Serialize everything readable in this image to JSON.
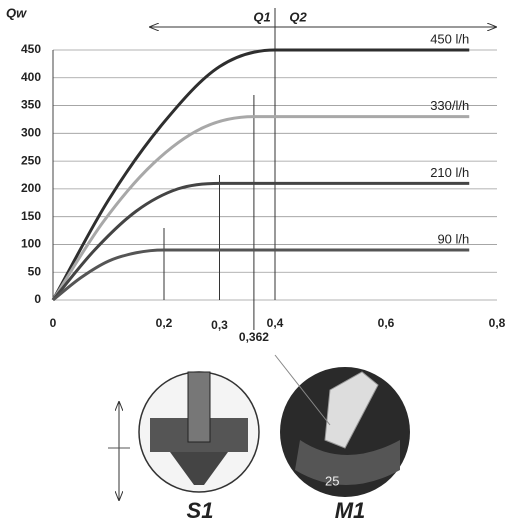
{
  "chart_data": {
    "type": "line",
    "y_label": "Qw",
    "xlim": [
      0,
      0.8
    ],
    "ylim": [
      0,
      450
    ],
    "xticks": [
      0,
      {
        "value": 0.2,
        "label": "0,2"
      },
      {
        "value": 0.3,
        "label": "0,3"
      },
      {
        "value": 0.362,
        "label": "0,362"
      },
      {
        "value": 0.4,
        "label": "0,4"
      },
      {
        "value": 0.6,
        "label": "0,6"
      },
      {
        "value": 0.8,
        "label": "0,8"
      }
    ],
    "yticks": [
      0,
      50,
      100,
      150,
      200,
      250,
      300,
      350,
      400,
      450
    ],
    "grid": true,
    "series": [
      {
        "name": "450 l/h",
        "color": "#2e2e2e",
        "x": [
          0,
          0.1,
          0.2,
          0.3,
          0.4,
          0.75
        ],
        "values": [
          0,
          180,
          320,
          420,
          450,
          450
        ]
      },
      {
        "name": "330/l/h",
        "color": "#a8a8a8",
        "x": [
          0,
          0.09,
          0.18,
          0.27,
          0.362,
          0.75
        ],
        "values": [
          0,
          140,
          245,
          310,
          330,
          330
        ]
      },
      {
        "name": "210 l/h",
        "color": "#444444",
        "x": [
          0,
          0.075,
          0.15,
          0.225,
          0.3,
          0.75
        ],
        "values": [
          0,
          90,
          160,
          200,
          210,
          210
        ]
      },
      {
        "name": "90 l/h",
        "color": "#555555",
        "x": [
          0,
          0.05,
          0.1,
          0.15,
          0.2,
          0.75
        ],
        "values": [
          0,
          40,
          70,
          85,
          90,
          90
        ]
      }
    ],
    "annotations": [
      "Q1",
      "Q2",
      "S1",
      "M1"
    ]
  }
}
